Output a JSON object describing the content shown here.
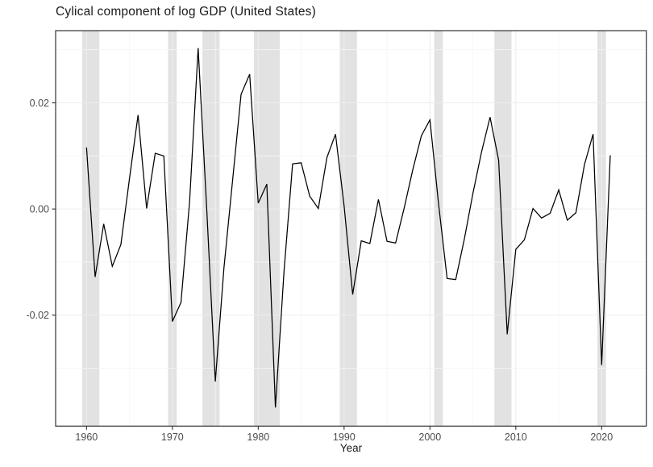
{
  "chart_data": {
    "type": "line",
    "title": "Cylical component of log GDP (United States)",
    "xlabel": "Year",
    "ylabel": "",
    "legend": "none",
    "grid": "on",
    "line_color": "#000000",
    "recession_band_color": "#e2e2e2",
    "panel_border_color": "#333333",
    "major_grid_color": "#ededed",
    "minor_grid_color": "#f6f6f6",
    "xlim": [
      1956.4,
      2025.2
    ],
    "ylim": [
      -0.0409,
      0.0336
    ],
    "xticks": [
      "1960",
      "1970",
      "1980",
      "1990",
      "2000",
      "2010",
      "2020"
    ],
    "xtick_years": [
      1960,
      1970,
      1980,
      1990,
      2000,
      2010,
      2020
    ],
    "x_minor_years": [
      1965,
      1975,
      1985,
      1995,
      2005,
      2015
    ],
    "ytick_labels": [
      "-0.02",
      "0.00",
      "0.02"
    ],
    "ytick_values": [
      -0.02,
      0.0,
      0.02
    ],
    "y_minor_values": [
      -0.03,
      -0.01,
      0.01,
      0.03
    ],
    "recession_bands": [
      [
        1959.5,
        1961.5
      ],
      [
        1969.5,
        1970.5
      ],
      [
        1973.5,
        1975.5
      ],
      [
        1979.5,
        1982.5
      ],
      [
        1989.5,
        1991.5
      ],
      [
        2000.5,
        2001.5
      ],
      [
        2007.5,
        2009.5
      ],
      [
        2019.5,
        2020.5
      ]
    ],
    "x": [
      1960,
      1961,
      1962,
      1963,
      1964,
      1965,
      1966,
      1967,
      1968,
      1969,
      1970,
      1971,
      1972,
      1973,
      1974,
      1975,
      1976,
      1977,
      1978,
      1979,
      1980,
      1981,
      1982,
      1983,
      1984,
      1985,
      1986,
      1987,
      1988,
      1989,
      1990,
      1991,
      1992,
      1993,
      1994,
      1995,
      1996,
      1997,
      1998,
      1999,
      2000,
      2001,
      2002,
      2003,
      2004,
      2005,
      2006,
      2007,
      2008,
      2009,
      2010,
      2011,
      2012,
      2013,
      2014,
      2015,
      2016,
      2017,
      2018,
      2019,
      2020,
      2021
    ],
    "values": [
      0.0116,
      -0.0128,
      -0.0028,
      -0.0108,
      -0.0067,
      0.0057,
      0.0177,
      0.0001,
      0.0105,
      0.01,
      -0.0212,
      -0.0176,
      0.0013,
      0.0303,
      0.0,
      -0.0325,
      -0.0112,
      0.0052,
      0.0216,
      0.0254,
      0.0011,
      0.0047,
      -0.0374,
      -0.0118,
      0.0085,
      0.0087,
      0.0024,
      0.0001,
      0.0097,
      0.0141,
      0.0006,
      -0.0161,
      -0.006,
      -0.0065,
      0.0018,
      -0.0061,
      -0.0064,
      0.0002,
      0.0074,
      0.0138,
      0.0168,
      0.001,
      -0.0131,
      -0.0133,
      -0.0057,
      0.0029,
      0.0107,
      0.0173,
      0.0092,
      -0.0236,
      -0.0076,
      -0.0058,
      0.0001,
      -0.0017,
      -0.0008,
      0.0036,
      -0.0021,
      -0.0007,
      0.0084,
      0.0141,
      -0.0294,
      0.0101
    ]
  }
}
